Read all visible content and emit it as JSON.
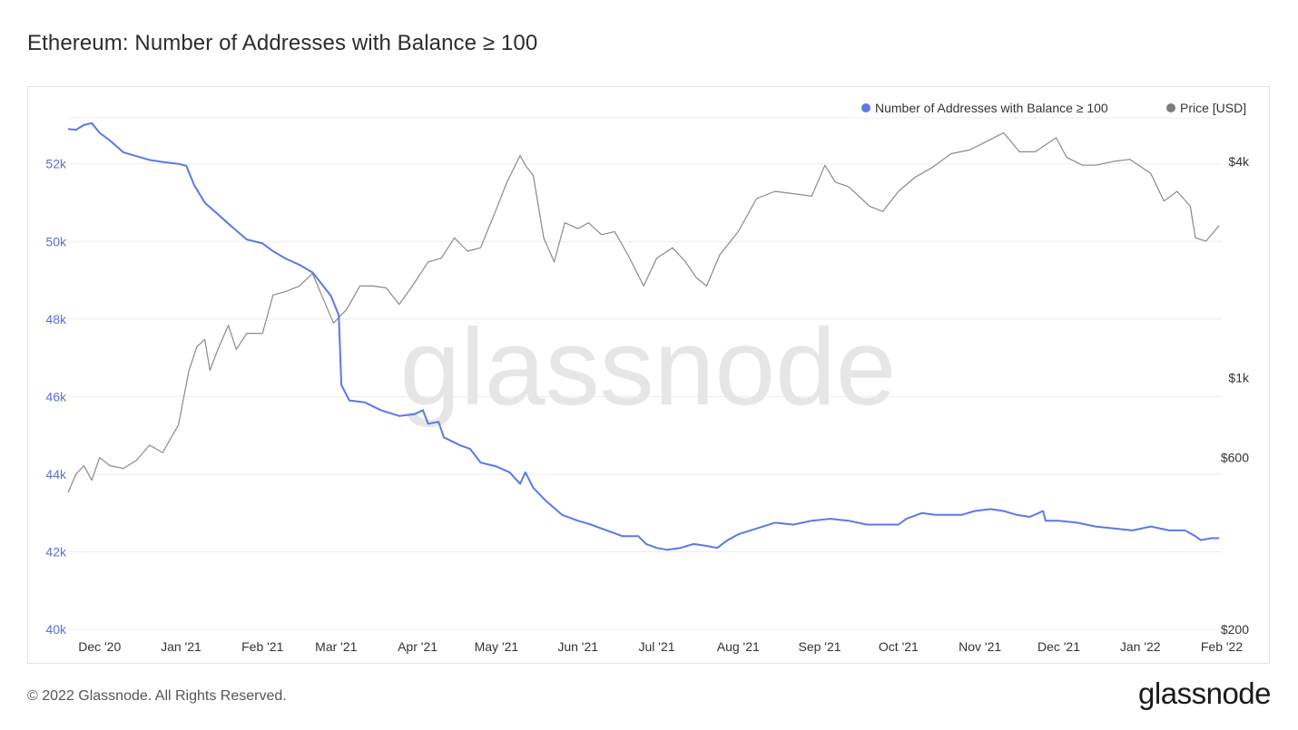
{
  "title": "Ethereum: Number of Addresses with Balance ≥ 100",
  "footer": {
    "copyright": "© 2022 Glassnode. All Rights Reserved.",
    "logo_text": "glassnode"
  },
  "watermark": "glassnode",
  "colors": {
    "addresses": "#5b79e6",
    "price": "#8a8a8a",
    "grid": "#ececec",
    "left_ticks": "#5b6fd6"
  },
  "chart_data": {
    "type": "line",
    "title": "Ethereum: Number of Addresses with Balance ≥ 100",
    "legend_position": "top-right",
    "grid": true,
    "x_range": [
      "2020-11-19",
      "2022-02-01"
    ],
    "x_ticks": [
      "Dec '20",
      "Jan '21",
      "Feb '21",
      "Mar '21",
      "Apr '21",
      "May '21",
      "Jun '21",
      "Jul '21",
      "Aug '21",
      "Sep '21",
      "Oct '21",
      "Nov '21",
      "Dec '21",
      "Jan '22",
      "Feb '22"
    ],
    "y_left": {
      "ticks": [
        "40k",
        "42k",
        "44k",
        "46k",
        "48k",
        "50k",
        "52k"
      ],
      "range": [
        40000,
        53700
      ]
    },
    "y_right": {
      "scale": "log",
      "ticks": [
        "$200",
        "$600",
        "$1k",
        "$4k"
      ],
      "range": [
        200,
        6000
      ]
    },
    "series": [
      {
        "name": "Number of Addresses with Balance ≥ 100",
        "axis": "left",
        "color": "#5b79e6",
        "points": [
          [
            "2020-11-19",
            52900
          ],
          [
            "2020-11-22",
            52880
          ],
          [
            "2020-11-25",
            53000
          ],
          [
            "2020-11-28",
            53050
          ],
          [
            "2020-12-01",
            52800
          ],
          [
            "2020-12-05",
            52600
          ],
          [
            "2020-12-10",
            52300
          ],
          [
            "2020-12-15",
            52200
          ],
          [
            "2020-12-20",
            52100
          ],
          [
            "2020-12-25",
            52050
          ],
          [
            "2020-12-31",
            52000
          ],
          [
            "2021-01-03",
            51950
          ],
          [
            "2021-01-06",
            51450
          ],
          [
            "2021-01-10",
            51000
          ],
          [
            "2021-01-15",
            50700
          ],
          [
            "2021-01-20",
            50400
          ],
          [
            "2021-01-26",
            50050
          ],
          [
            "2021-02-01",
            49950
          ],
          [
            "2021-02-05",
            49750
          ],
          [
            "2021-02-10",
            49550
          ],
          [
            "2021-02-15",
            49400
          ],
          [
            "2021-02-20",
            49200
          ],
          [
            "2021-02-23",
            48950
          ],
          [
            "2021-02-27",
            48600
          ],
          [
            "2021-03-02",
            48100
          ],
          [
            "2021-03-03",
            46300
          ],
          [
            "2021-03-06",
            45900
          ],
          [
            "2021-03-12",
            45850
          ],
          [
            "2021-03-18",
            45650
          ],
          [
            "2021-03-25",
            45500
          ],
          [
            "2021-03-31",
            45550
          ],
          [
            "2021-04-03",
            45650
          ],
          [
            "2021-04-05",
            45300
          ],
          [
            "2021-04-09",
            45350
          ],
          [
            "2021-04-11",
            44950
          ],
          [
            "2021-04-17",
            44750
          ],
          [
            "2021-04-21",
            44650
          ],
          [
            "2021-04-25",
            44300
          ],
          [
            "2021-05-01",
            44200
          ],
          [
            "2021-05-06",
            44050
          ],
          [
            "2021-05-10",
            43750
          ],
          [
            "2021-05-12",
            44050
          ],
          [
            "2021-05-15",
            43650
          ],
          [
            "2021-05-20",
            43300
          ],
          [
            "2021-05-26",
            42950
          ],
          [
            "2021-06-01",
            42800
          ],
          [
            "2021-06-06",
            42700
          ],
          [
            "2021-06-12",
            42550
          ],
          [
            "2021-06-18",
            42400
          ],
          [
            "2021-06-24",
            42400
          ],
          [
            "2021-06-27",
            42200
          ],
          [
            "2021-07-01",
            42100
          ],
          [
            "2021-07-05",
            42050
          ],
          [
            "2021-07-10",
            42100
          ],
          [
            "2021-07-15",
            42200
          ],
          [
            "2021-07-20",
            42150
          ],
          [
            "2021-07-24",
            42100
          ],
          [
            "2021-07-28",
            42300
          ],
          [
            "2021-08-01",
            42450
          ],
          [
            "2021-08-08",
            42600
          ],
          [
            "2021-08-15",
            42750
          ],
          [
            "2021-08-22",
            42700
          ],
          [
            "2021-08-29",
            42800
          ],
          [
            "2021-09-05",
            42850
          ],
          [
            "2021-09-12",
            42800
          ],
          [
            "2021-09-19",
            42700
          ],
          [
            "2021-09-26",
            42700
          ],
          [
            "2021-10-01",
            42700
          ],
          [
            "2021-10-04",
            42850
          ],
          [
            "2021-10-10",
            43000
          ],
          [
            "2021-10-15",
            42950
          ],
          [
            "2021-10-20",
            42950
          ],
          [
            "2021-10-25",
            42950
          ],
          [
            "2021-10-30",
            43050
          ],
          [
            "2021-11-05",
            43100
          ],
          [
            "2021-11-10",
            43050
          ],
          [
            "2021-11-15",
            42950
          ],
          [
            "2021-11-20",
            42900
          ],
          [
            "2021-11-25",
            43050
          ],
          [
            "2021-11-26",
            42800
          ],
          [
            "2021-12-01",
            42800
          ],
          [
            "2021-12-08",
            42750
          ],
          [
            "2021-12-15",
            42650
          ],
          [
            "2021-12-22",
            42600
          ],
          [
            "2021-12-29",
            42550
          ],
          [
            "2022-01-05",
            42650
          ],
          [
            "2022-01-12",
            42550
          ],
          [
            "2022-01-18",
            42550
          ],
          [
            "2022-01-22",
            42400
          ],
          [
            "2022-01-24",
            42300
          ],
          [
            "2022-01-28",
            42350
          ],
          [
            "2022-01-31",
            42350
          ]
        ]
      },
      {
        "name": "Price [USD]",
        "axis": "right",
        "color": "#8a8a8a",
        "points": [
          [
            "2020-11-19",
            480
          ],
          [
            "2020-11-22",
            540
          ],
          [
            "2020-11-25",
            570
          ],
          [
            "2020-11-28",
            520
          ],
          [
            "2020-12-01",
            600
          ],
          [
            "2020-12-05",
            570
          ],
          [
            "2020-12-10",
            560
          ],
          [
            "2020-12-15",
            590
          ],
          [
            "2020-12-20",
            650
          ],
          [
            "2020-12-25",
            620
          ],
          [
            "2020-12-31",
            740
          ],
          [
            "2021-01-04",
            1050
          ],
          [
            "2021-01-07",
            1220
          ],
          [
            "2021-01-10",
            1280
          ],
          [
            "2021-01-12",
            1050
          ],
          [
            "2021-01-15",
            1200
          ],
          [
            "2021-01-19",
            1400
          ],
          [
            "2021-01-22",
            1200
          ],
          [
            "2021-01-26",
            1330
          ],
          [
            "2021-02-01",
            1330
          ],
          [
            "2021-02-05",
            1700
          ],
          [
            "2021-02-10",
            1740
          ],
          [
            "2021-02-15",
            1800
          ],
          [
            "2021-02-20",
            1950
          ],
          [
            "2021-02-25",
            1600
          ],
          [
            "2021-02-28",
            1420
          ],
          [
            "2021-03-05",
            1550
          ],
          [
            "2021-03-10",
            1800
          ],
          [
            "2021-03-15",
            1800
          ],
          [
            "2021-03-20",
            1780
          ],
          [
            "2021-03-25",
            1600
          ],
          [
            "2021-03-30",
            1800
          ],
          [
            "2021-04-05",
            2100
          ],
          [
            "2021-04-10",
            2150
          ],
          [
            "2021-04-15",
            2450
          ],
          [
            "2021-04-20",
            2250
          ],
          [
            "2021-04-25",
            2300
          ],
          [
            "2021-05-01",
            2950
          ],
          [
            "2021-05-05",
            3500
          ],
          [
            "2021-05-10",
            4150
          ],
          [
            "2021-05-12",
            3900
          ],
          [
            "2021-05-15",
            3650
          ],
          [
            "2021-05-19",
            2450
          ],
          [
            "2021-05-23",
            2100
          ],
          [
            "2021-05-27",
            2700
          ],
          [
            "2021-06-01",
            2600
          ],
          [
            "2021-06-05",
            2700
          ],
          [
            "2021-06-10",
            2500
          ],
          [
            "2021-06-15",
            2550
          ],
          [
            "2021-06-20",
            2200
          ],
          [
            "2021-06-26",
            1800
          ],
          [
            "2021-07-01",
            2150
          ],
          [
            "2021-07-07",
            2300
          ],
          [
            "2021-07-12",
            2100
          ],
          [
            "2021-07-16",
            1900
          ],
          [
            "2021-07-20",
            1800
          ],
          [
            "2021-07-25",
            2200
          ],
          [
            "2021-08-01",
            2550
          ],
          [
            "2021-08-08",
            3150
          ],
          [
            "2021-08-15",
            3300
          ],
          [
            "2021-08-22",
            3250
          ],
          [
            "2021-08-29",
            3200
          ],
          [
            "2021-09-03",
            3900
          ],
          [
            "2021-09-07",
            3500
          ],
          [
            "2021-09-12",
            3400
          ],
          [
            "2021-09-20",
            3000
          ],
          [
            "2021-09-25",
            2900
          ],
          [
            "2021-10-01",
            3300
          ],
          [
            "2021-10-07",
            3600
          ],
          [
            "2021-10-14",
            3850
          ],
          [
            "2021-10-21",
            4200
          ],
          [
            "2021-10-28",
            4300
          ],
          [
            "2021-11-05",
            4600
          ],
          [
            "2021-11-10",
            4800
          ],
          [
            "2021-11-16",
            4250
          ],
          [
            "2021-11-22",
            4250
          ],
          [
            "2021-11-30",
            4650
          ],
          [
            "2021-12-04",
            4100
          ],
          [
            "2021-12-10",
            3900
          ],
          [
            "2021-12-15",
            3900
          ],
          [
            "2021-12-22",
            4000
          ],
          [
            "2021-12-28",
            4050
          ],
          [
            "2022-01-05",
            3700
          ],
          [
            "2022-01-10",
            3100
          ],
          [
            "2022-01-15",
            3300
          ],
          [
            "2022-01-20",
            3000
          ],
          [
            "2022-01-22",
            2450
          ],
          [
            "2022-01-26",
            2400
          ],
          [
            "2022-01-31",
            2650
          ]
        ]
      }
    ]
  }
}
